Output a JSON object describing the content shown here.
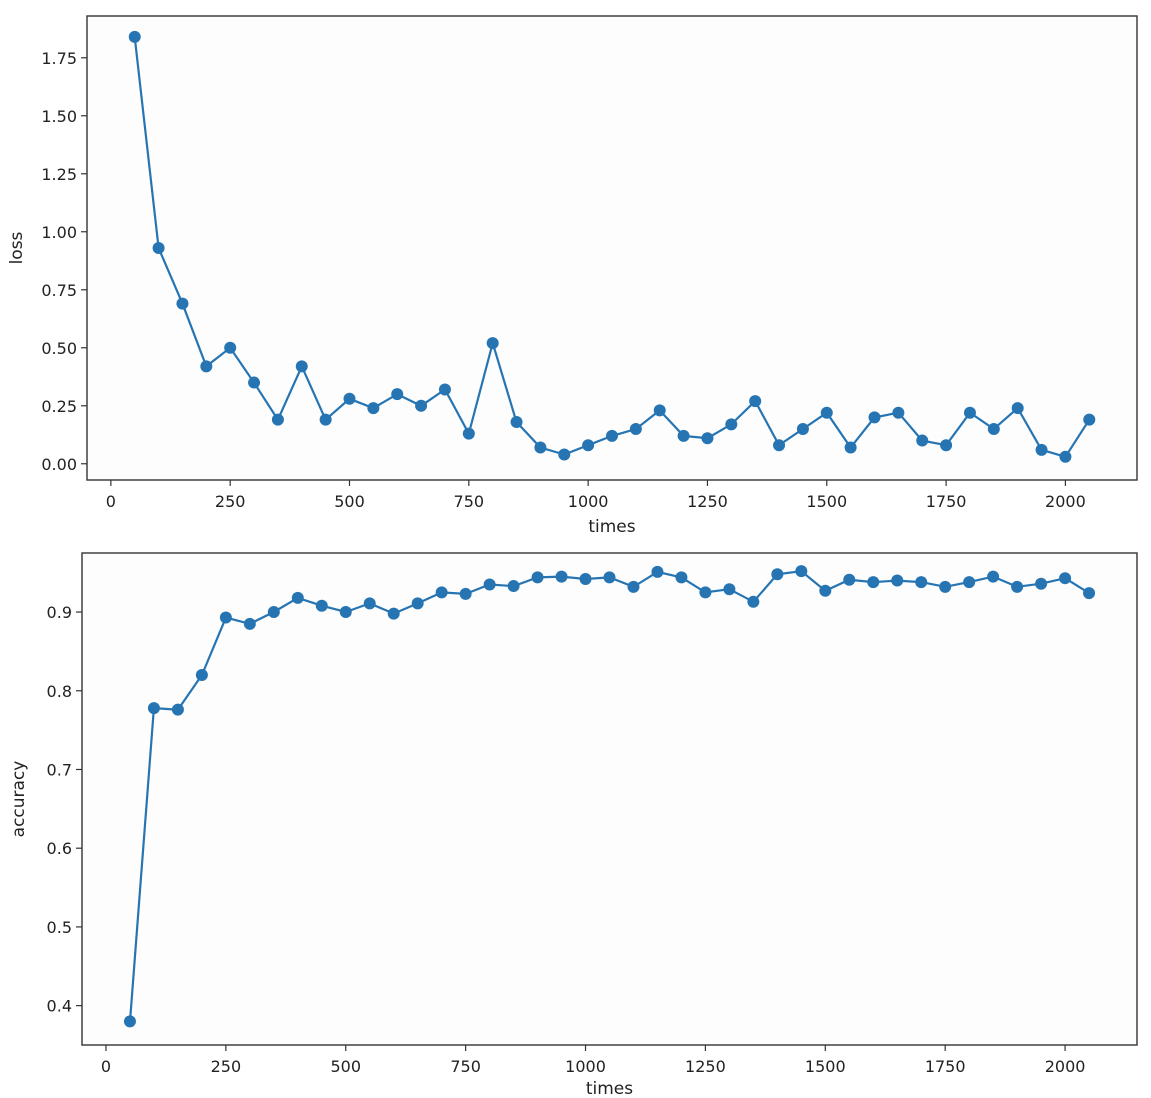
{
  "colors": {
    "series": "#2675b2",
    "background": "#ffffff",
    "axes": "#333333"
  },
  "chart_data": [
    {
      "type": "line",
      "xlabel": "times",
      "ylabel": "loss",
      "xlim": [
        -50,
        2150
      ],
      "ylim": [
        -0.07,
        1.93
      ],
      "grid": false,
      "xticks": [
        0,
        250,
        500,
        750,
        1000,
        1250,
        1500,
        1750,
        2000
      ],
      "yticks": [
        0.0,
        0.25,
        0.5,
        0.75,
        1.0,
        1.25,
        1.5,
        1.75
      ],
      "ytick_labels": [
        "0.00",
        "0.25",
        "0.50",
        "0.75",
        "1.00",
        "1.25",
        "1.50",
        "1.75"
      ],
      "x": [
        50,
        100,
        150,
        200,
        250,
        300,
        350,
        400,
        450,
        500,
        550,
        600,
        650,
        700,
        750,
        800,
        850,
        900,
        950,
        1000,
        1050,
        1100,
        1150,
        1200,
        1250,
        1300,
        1350,
        1400,
        1450,
        1500,
        1550,
        1600,
        1650,
        1700,
        1750,
        1800,
        1850,
        1900,
        1950,
        2000,
        2050
      ],
      "y": [
        1.84,
        0.93,
        0.69,
        0.42,
        0.5,
        0.35,
        0.19,
        0.42,
        0.19,
        0.28,
        0.24,
        0.3,
        0.25,
        0.32,
        0.13,
        0.52,
        0.18,
        0.07,
        0.04,
        0.08,
        0.12,
        0.15,
        0.23,
        0.12,
        0.11,
        0.17,
        0.27,
        0.08,
        0.15,
        0.22,
        0.07,
        0.2,
        0.22,
        0.1,
        0.08,
        0.22,
        0.15,
        0.24,
        0.06,
        0.03,
        0.19
      ]
    },
    {
      "type": "line",
      "xlabel": "times",
      "ylabel": "accuracy",
      "xlim": [
        -50,
        2150
      ],
      "ylim": [
        0.35,
        0.975
      ],
      "grid": false,
      "xticks": [
        0,
        250,
        500,
        750,
        1000,
        1250,
        1500,
        1750,
        2000
      ],
      "yticks": [
        0.4,
        0.5,
        0.6,
        0.7,
        0.8,
        0.9
      ],
      "ytick_labels": [
        "0.4",
        "0.5",
        "0.6",
        "0.7",
        "0.8",
        "0.9"
      ],
      "x": [
        50,
        100,
        150,
        200,
        250,
        300,
        350,
        400,
        450,
        500,
        550,
        600,
        650,
        700,
        750,
        800,
        850,
        900,
        950,
        1000,
        1050,
        1100,
        1150,
        1200,
        1250,
        1300,
        1350,
        1400,
        1450,
        1500,
        1550,
        1600,
        1650,
        1700,
        1750,
        1800,
        1850,
        1900,
        1950,
        2000,
        2050
      ],
      "y": [
        0.38,
        0.778,
        0.776,
        0.82,
        0.893,
        0.885,
        0.9,
        0.918,
        0.908,
        0.9,
        0.911,
        0.898,
        0.911,
        0.925,
        0.923,
        0.935,
        0.933,
        0.944,
        0.945,
        0.942,
        0.944,
        0.932,
        0.951,
        0.944,
        0.925,
        0.929,
        0.913,
        0.948,
        0.952,
        0.927,
        0.941,
        0.938,
        0.94,
        0.938,
        0.932,
        0.938,
        0.945,
        0.932,
        0.936,
        0.943,
        0.924
      ]
    }
  ]
}
